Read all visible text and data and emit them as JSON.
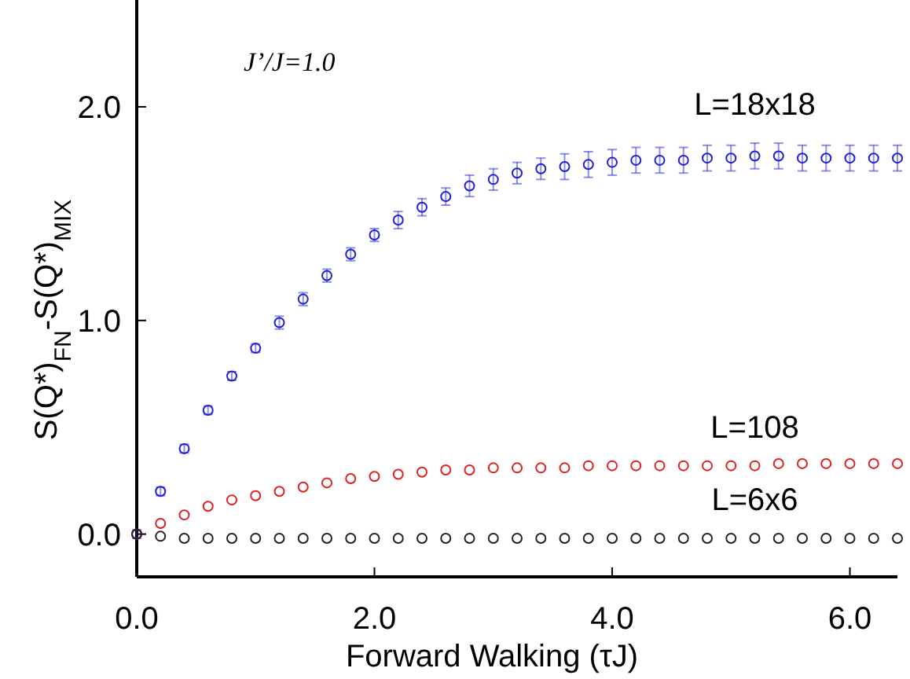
{
  "chart_data": {
    "type": "scatter",
    "xlabel": "Forward Walking (τJ)",
    "ylabel": "S(Q*)$_{FN}$-S(Q*)$_{MIX}$",
    "annotations": [
      "J’/J=1.0"
    ],
    "x": [
      0,
      0.2,
      0.4,
      0.6,
      0.8,
      1.0,
      1.2,
      1.4,
      1.6,
      1.8,
      2.0,
      2.2,
      2.4,
      2.6,
      2.8,
      3.0,
      3.2,
      3.4,
      3.6,
      3.8,
      4.0,
      4.2,
      4.4,
      4.6,
      4.8,
      5.0,
      5.2,
      5.4,
      5.6,
      5.8,
      6.0,
      6.2,
      6.4
    ],
    "series": [
      {
        "name": "L=18x18",
        "color": "#1f1fd6",
        "values": [
          0,
          0.2,
          0.4,
          0.58,
          0.74,
          0.87,
          0.99,
          1.1,
          1.21,
          1.31,
          1.4,
          1.47,
          1.53,
          1.58,
          1.63,
          1.66,
          1.69,
          1.71,
          1.72,
          1.73,
          1.74,
          1.75,
          1.75,
          1.75,
          1.76,
          1.76,
          1.77,
          1.77,
          1.76,
          1.76,
          1.76,
          1.76,
          1.76
        ],
        "errors": [
          0.02,
          0.02,
          0.02,
          0.02,
          0.02,
          0.02,
          0.03,
          0.03,
          0.03,
          0.03,
          0.03,
          0.04,
          0.04,
          0.04,
          0.05,
          0.05,
          0.05,
          0.05,
          0.06,
          0.06,
          0.06,
          0.06,
          0.06,
          0.06,
          0.06,
          0.06,
          0.06,
          0.06,
          0.06,
          0.06,
          0.06,
          0.06,
          0.06
        ]
      },
      {
        "name": "L=108",
        "color": "#e02020",
        "values": [
          0,
          0.05,
          0.09,
          0.13,
          0.16,
          0.18,
          0.2,
          0.22,
          0.24,
          0.26,
          0.27,
          0.28,
          0.29,
          0.3,
          0.3,
          0.31,
          0.31,
          0.31,
          0.31,
          0.32,
          0.32,
          0.32,
          0.32,
          0.32,
          0.32,
          0.32,
          0.32,
          0.33,
          0.33,
          0.33,
          0.33,
          0.33,
          0.33
        ]
      },
      {
        "name": "L=6x6",
        "color": "#222222",
        "values": [
          0,
          -0.01,
          -0.02,
          -0.02,
          -0.02,
          -0.02,
          -0.02,
          -0.02,
          -0.02,
          -0.02,
          -0.02,
          -0.02,
          -0.02,
          -0.02,
          -0.02,
          -0.02,
          -0.02,
          -0.02,
          -0.02,
          -0.02,
          -0.02,
          -0.02,
          -0.02,
          -0.02,
          -0.02,
          -0.02,
          -0.02,
          -0.02,
          -0.02,
          -0.02,
          -0.02,
          -0.02,
          -0.02
        ]
      }
    ],
    "xlim": [
      0,
      6.4
    ],
    "ylim": [
      -0.2,
      2.5
    ],
    "xticks": [
      {
        "value": 0,
        "label": "0.0"
      },
      {
        "value": 2,
        "label": "2.0"
      },
      {
        "value": 4,
        "label": "4.0"
      },
      {
        "value": 6,
        "label": "6.0"
      }
    ],
    "yticks": [
      {
        "value": 0,
        "label": "0.0"
      },
      {
        "value": 1,
        "label": "1.0"
      },
      {
        "value": 2,
        "label": "2.0"
      }
    ],
    "marker": "circle"
  }
}
